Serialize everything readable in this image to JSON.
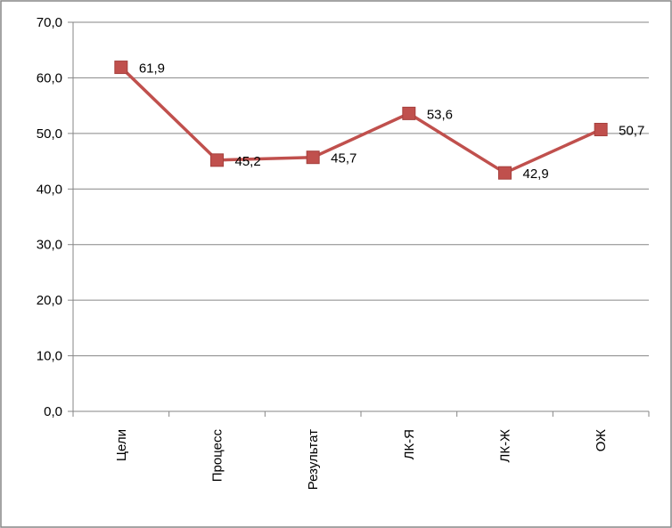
{
  "chart_data": {
    "type": "line",
    "categories": [
      "Цели",
      "Процесс",
      "Результат",
      "ЛК-Я",
      "ЛК-Ж",
      "ОЖ"
    ],
    "series": [
      {
        "values": [
          61.9,
          45.2,
          45.7,
          53.6,
          42.9,
          50.7
        ],
        "data_labels": [
          "61,9",
          "45,2",
          "45,7",
          "53,6",
          "42,9",
          "50,7"
        ],
        "color": "#C0504D",
        "marker": "square"
      }
    ],
    "ylim": [
      0,
      70
    ],
    "yticks": [
      0,
      10,
      20,
      30,
      40,
      50,
      60,
      70
    ],
    "ytick_labels": [
      "0,0",
      "10,0",
      "20,0",
      "30,0",
      "40,0",
      "50,0",
      "60,0",
      "70,0"
    ],
    "grid": true,
    "legend": "none",
    "title": "",
    "xlabel": "",
    "ylabel": ""
  },
  "colors": {
    "series": "#C0504D",
    "grid": "#868686",
    "axis": "#868686",
    "border": "#868686"
  }
}
